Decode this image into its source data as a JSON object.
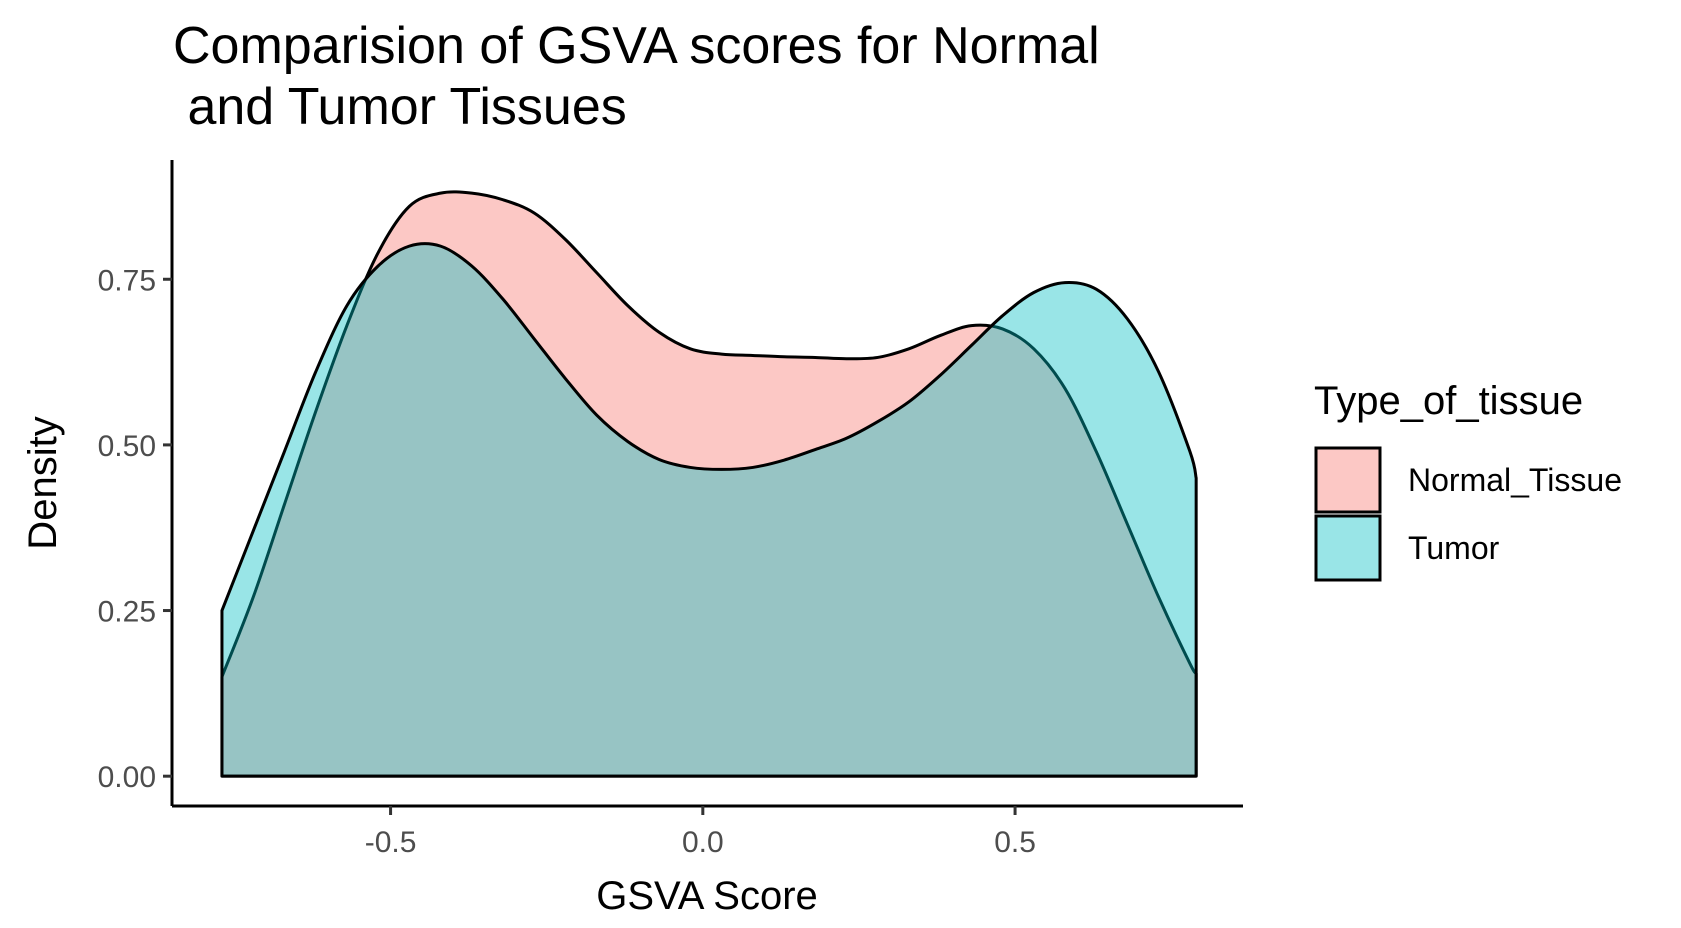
{
  "chart_data": {
    "type": "area",
    "title_lines": [
      "Comparision of GSVA scores for Normal",
      " and Tumor Tissues"
    ],
    "xlabel": "GSVA Score",
    "ylabel": "Density",
    "xlim": [
      -0.85,
      0.865
    ],
    "ylim": [
      -0.045,
      0.93
    ],
    "x_ticks": [
      -0.5,
      0.0,
      0.5
    ],
    "x_tick_labels": [
      "-0.5",
      "0.0",
      "0.5"
    ],
    "y_ticks": [
      0.0,
      0.25,
      0.5,
      0.75
    ],
    "y_tick_labels": [
      "0.00",
      "0.25",
      "0.50",
      "0.75"
    ],
    "grid": false,
    "legend": {
      "title": "Type_of_tissue",
      "placement": "right"
    },
    "series": [
      {
        "name": "Normal_Tissue",
        "color": "#F8766D",
        "fill_opacity": 0.4,
        "points": [
          [
            -0.77,
            0.15
          ],
          [
            -0.72,
            0.27
          ],
          [
            -0.67,
            0.41
          ],
          [
            -0.62,
            0.55
          ],
          [
            -0.57,
            0.68
          ],
          [
            -0.52,
            0.79
          ],
          [
            -0.47,
            0.86
          ],
          [
            -0.42,
            0.88
          ],
          [
            -0.37,
            0.88
          ],
          [
            -0.32,
            0.87
          ],
          [
            -0.27,
            0.85
          ],
          [
            -0.22,
            0.81
          ],
          [
            -0.17,
            0.76
          ],
          [
            -0.12,
            0.71
          ],
          [
            -0.07,
            0.67
          ],
          [
            -0.02,
            0.645
          ],
          [
            0.03,
            0.637
          ],
          [
            0.08,
            0.635
          ],
          [
            0.13,
            0.633
          ],
          [
            0.18,
            0.632
          ],
          [
            0.23,
            0.63
          ],
          [
            0.28,
            0.632
          ],
          [
            0.33,
            0.645
          ],
          [
            0.38,
            0.665
          ],
          [
            0.43,
            0.68
          ],
          [
            0.48,
            0.675
          ],
          [
            0.53,
            0.645
          ],
          [
            0.58,
            0.585
          ],
          [
            0.63,
            0.49
          ],
          [
            0.68,
            0.38
          ],
          [
            0.73,
            0.27
          ],
          [
            0.78,
            0.17
          ],
          [
            0.79,
            0.155
          ]
        ]
      },
      {
        "name": "Tumor",
        "color": "#00BFC4",
        "fill_opacity": 0.4,
        "points": [
          [
            -0.77,
            0.25
          ],
          [
            -0.72,
            0.37
          ],
          [
            -0.67,
            0.49
          ],
          [
            -0.62,
            0.61
          ],
          [
            -0.57,
            0.71
          ],
          [
            -0.52,
            0.77
          ],
          [
            -0.47,
            0.8
          ],
          [
            -0.42,
            0.8
          ],
          [
            -0.37,
            0.77
          ],
          [
            -0.32,
            0.72
          ],
          [
            -0.27,
            0.66
          ],
          [
            -0.22,
            0.6
          ],
          [
            -0.17,
            0.545
          ],
          [
            -0.12,
            0.505
          ],
          [
            -0.07,
            0.478
          ],
          [
            -0.02,
            0.466
          ],
          [
            0.03,
            0.463
          ],
          [
            0.08,
            0.466
          ],
          [
            0.13,
            0.477
          ],
          [
            0.18,
            0.493
          ],
          [
            0.23,
            0.51
          ],
          [
            0.28,
            0.535
          ],
          [
            0.33,
            0.565
          ],
          [
            0.38,
            0.605
          ],
          [
            0.43,
            0.65
          ],
          [
            0.48,
            0.695
          ],
          [
            0.53,
            0.73
          ],
          [
            0.58,
            0.745
          ],
          [
            0.63,
            0.735
          ],
          [
            0.68,
            0.69
          ],
          [
            0.73,
            0.61
          ],
          [
            0.78,
            0.49
          ],
          [
            0.79,
            0.45
          ]
        ]
      }
    ]
  }
}
